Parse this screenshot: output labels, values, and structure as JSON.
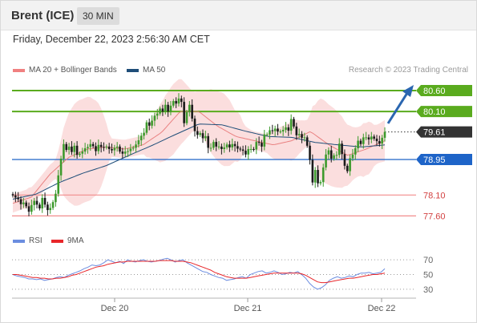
{
  "header": {
    "title": "Brent (ICE)",
    "timeframe": "30 MIN"
  },
  "datetime": "Friday, December 22, 2023 2:56:30 AM CET",
  "legend": {
    "items": [
      {
        "label": "MA 20 + Bollinger Bands",
        "color": "#f08080"
      },
      {
        "label": "MA 50",
        "color": "#1f4e79"
      }
    ],
    "credit": "Research © 2023 Trading Central"
  },
  "rsi_legend": {
    "items": [
      {
        "label": "RSI",
        "color": "#6b8de0"
      },
      {
        "label": "9MA",
        "color": "#e8262a"
      }
    ]
  },
  "chart_data": [
    {
      "type": "candlestick",
      "ylim": [
        77.3,
        80.85
      ],
      "x_ticks": [
        "Dec 20",
        "Dec 21",
        "Dec 22"
      ],
      "levels": [
        {
          "value": 80.6,
          "label": "80.60",
          "kind": "resistance",
          "color": "#5aab1e"
        },
        {
          "value": 80.1,
          "label": "80.10",
          "kind": "resistance",
          "color": "#5aab1e"
        },
        {
          "value": 79.61,
          "label": "79.61",
          "kind": "last-price",
          "color": "#333333"
        },
        {
          "value": 78.95,
          "label": "78.95",
          "kind": "pivot",
          "color": "#1e64c8"
        },
        {
          "value": 78.1,
          "label": "78.10",
          "kind": "support",
          "color": "#f28c8c"
        },
        {
          "value": 77.6,
          "label": "77.60",
          "kind": "support",
          "color": "#f28c8c"
        }
      ],
      "close": [
        78.09,
        78.04,
        78.0,
        77.88,
        77.92,
        77.83,
        77.7,
        77.86,
        77.96,
        77.87,
        77.78,
        78.03,
        77.87,
        77.74,
        77.79,
        77.93,
        78.13,
        78.57,
        78.97,
        79.32,
        79.18,
        79.26,
        79.13,
        79.28,
        79.06,
        79.09,
        79.14,
        79.22,
        79.25,
        79.32,
        79.27,
        79.15,
        79.3,
        79.25,
        79.24,
        79.26,
        79.2,
        79.17,
        79.23,
        79.26,
        79.14,
        79.09,
        79.14,
        79.15,
        79.21,
        79.23,
        79.31,
        79.41,
        79.52,
        79.59,
        79.84,
        79.76,
        79.88,
        80.0,
        80.05,
        80.17,
        80.1,
        80.26,
        80.1,
        80.24,
        80.35,
        80.29,
        80.41,
        80.33,
        79.82,
        80.09,
        80.26,
        79.93,
        79.63,
        79.54,
        79.58,
        79.46,
        79.51,
        79.23,
        79.23,
        79.37,
        79.26,
        79.26,
        79.2,
        79.24,
        79.31,
        79.24,
        79.32,
        79.27,
        79.21,
        79.19,
        79.16,
        79.07,
        79.2,
        79.2,
        79.19,
        79.37,
        79.35,
        79.26,
        79.55,
        79.55,
        79.65,
        79.63,
        79.69,
        79.62,
        79.62,
        79.66,
        79.72,
        79.64,
        79.92,
        79.74,
        79.53,
        79.56,
        79.47,
        79.48,
        79.28,
        78.94,
        78.4,
        78.7,
        78.38,
        78.41,
        78.76,
        79.07,
        79.17,
        78.97,
        79.05,
        79.06,
        79.33,
        79.08,
        78.8,
        78.67,
        78.98,
        79.07,
        79.22,
        79.4,
        79.32,
        79.48,
        79.48,
        79.43,
        79.5,
        79.45,
        79.39,
        79.33,
        79.47,
        79.61
      ],
      "ma50_values": [
        78.0,
        78.12,
        78.4,
        78.62,
        78.8,
        79.05,
        79.29,
        79.55,
        79.8,
        79.78,
        79.63,
        79.5,
        79.48,
        79.36,
        79.3,
        79.25,
        79.3
      ],
      "ma20_values": [
        77.9,
        78.05,
        78.6,
        79.0,
        79.2,
        79.25,
        79.2,
        79.3,
        79.6,
        80.1,
        80.1,
        79.75,
        79.5,
        79.4,
        79.3,
        79.4,
        79.62,
        79.3,
        79.05,
        79.2,
        79.4
      ]
    },
    {
      "type": "line",
      "ylim": [
        20,
        80
      ],
      "y_ticks": [
        70,
        50,
        30
      ],
      "series": [
        {
          "name": "RSI",
          "values": [
            50,
            48,
            47,
            46,
            44,
            44,
            43,
            44,
            42,
            43,
            44,
            46,
            47,
            46,
            49,
            51,
            53,
            55,
            58,
            60,
            63,
            62,
            63,
            66,
            70,
            68,
            66,
            68,
            65,
            70,
            68,
            67,
            69,
            70,
            68,
            67,
            68,
            69,
            71,
            72,
            70,
            67,
            69,
            70,
            66,
            63,
            60,
            57,
            54,
            53,
            50,
            48,
            46,
            45,
            42,
            43,
            44,
            46,
            47,
            45,
            50,
            52,
            54,
            55,
            52,
            53,
            55,
            53,
            50,
            51,
            53,
            52,
            54,
            50,
            45,
            38,
            33,
            30,
            32,
            36,
            42,
            45,
            47,
            45,
            46,
            48,
            47,
            50,
            52,
            52,
            53,
            51,
            52,
            53,
            58
          ]
        },
        {
          "name": "9MA",
          "values": [
            50,
            50,
            49,
            48,
            47,
            46,
            46,
            45,
            45,
            44,
            44,
            45,
            45,
            46,
            47,
            49,
            50,
            52,
            54,
            56,
            58,
            60,
            61,
            62,
            64,
            65,
            66,
            67,
            67,
            68,
            68,
            68,
            68,
            68,
            68,
            68,
            68,
            69,
            69,
            69,
            69,
            68,
            68,
            68,
            67,
            66,
            64,
            62,
            60,
            58,
            56,
            53,
            51,
            49,
            47,
            46,
            45,
            45,
            45,
            45,
            46,
            47,
            48,
            49,
            50,
            51,
            52,
            52,
            52,
            52,
            52,
            52,
            52,
            51,
            49,
            46,
            43,
            40,
            39,
            39,
            40,
            41,
            42,
            43,
            44,
            45,
            45,
            46,
            47,
            48,
            49,
            50,
            50,
            51,
            52
          ]
        }
      ]
    }
  ]
}
